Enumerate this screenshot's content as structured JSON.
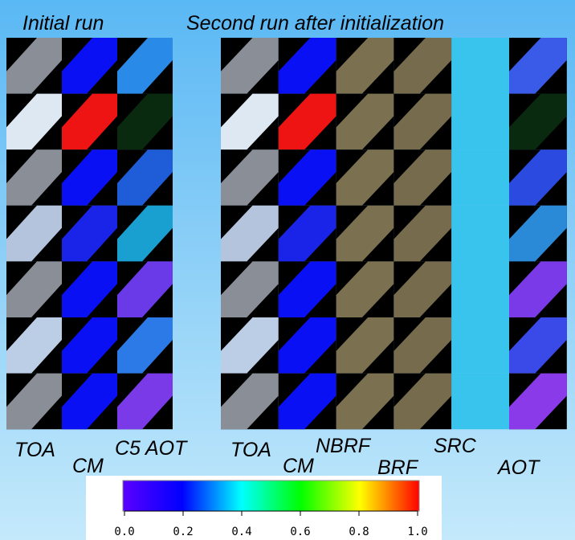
{
  "headers": [
    "Initial run",
    "Second run after initialization"
  ],
  "initial_columns": [
    "TOA",
    "CM",
    "C5 AOT"
  ],
  "second_columns": [
    "TOA",
    "CM",
    "NBRF",
    "BRF",
    "SRC",
    "AOT"
  ],
  "colorbar": {
    "lim": [
      0,
      1
    ],
    "ticks": [
      {
        "value": 0,
        "label": "0.0"
      },
      {
        "value": 0.2,
        "label": "0.2"
      },
      {
        "value": 0.4,
        "label": "0.4"
      },
      {
        "value": 0.6,
        "label": "0.6"
      },
      {
        "value": 0.8,
        "label": "0.8"
      },
      {
        "value": 1,
        "label": "1.0"
      }
    ]
  }
}
